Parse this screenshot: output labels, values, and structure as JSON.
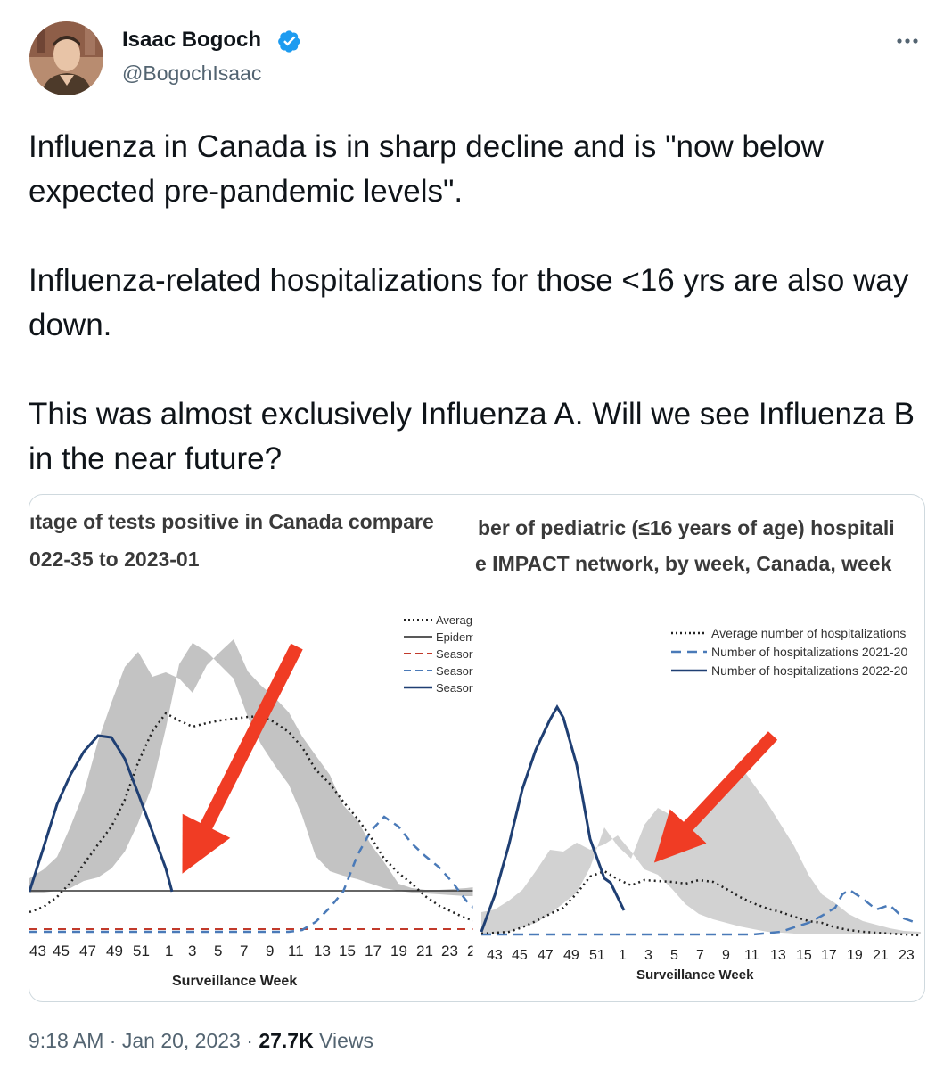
{
  "author": {
    "name": "Isaac Bogoch",
    "handle": "@BogochIsaac",
    "verified_icon": "verified-badge-icon",
    "more_icon": "more-options-icon"
  },
  "tweet_text": "Influenza in Canada is in sharp decline and is \"now below expected pre-pandemic levels\".\n\nInfluenza-related hospitalizations for those <16 yrs are also way down.\n\nThis was almost exclusively Influenza A. Will we see Influenza B in the near future?",
  "meta": {
    "time": "9:18 AM",
    "sep1": " · ",
    "date": "Jan 20, 2023",
    "sep2": " · ",
    "views_count": "27.7K",
    "views_label": " Views"
  },
  "colors": {
    "accent": "#1d9bf0",
    "text": "#0f1419",
    "muted": "#536471",
    "border": "#cfd9de",
    "season_current": "#1f3f73",
    "season_previous": "#4a7ab8",
    "arrow": "#f03c24",
    "band": "#c3c3c3"
  },
  "chart_data": [
    {
      "type": "line",
      "title": "ıtage of tests positive in Canada compare",
      "subtitle": "022-35 to 2023-01",
      "legend": [
        "Averag",
        "Epidem",
        "Season",
        "Season",
        "Season"
      ],
      "legend_position": "top-right",
      "xlabel": "Surveillance Week",
      "x_ticks": [
        "43",
        "45",
        "47",
        "49",
        "51",
        "1",
        "3",
        "5",
        "7",
        "9",
        "11",
        "13",
        "15",
        "17",
        "19",
        "21",
        "23",
        "2"
      ],
      "series": [
        {
          "style": "solid-dark",
          "x": [
            "42",
            "43",
            "44",
            "45",
            "46",
            "47",
            "48",
            "49",
            "50",
            "51",
            "52",
            "1"
          ],
          "values": [
            0,
            0.3,
            0.48,
            0.59,
            0.73,
            0.72,
            0.64,
            0.52,
            0.37,
            0.27,
            0.16,
            0.05
          ]
        },
        {
          "style": "dotted",
          "x": [
            "42",
            "44",
            "46",
            "48",
            "50",
            "52",
            "1",
            "3",
            "5",
            "7",
            "9",
            "11",
            "13",
            "15",
            "17",
            "19",
            "21",
            "23",
            "25"
          ],
          "values": [
            0,
            0.09,
            0.17,
            0.27,
            0.44,
            0.73,
            0.71,
            0.72,
            0.75,
            0.76,
            0.75,
            0.67,
            0.59,
            0.51,
            0.41,
            0.31,
            0.19,
            0.09,
            0.05
          ]
        },
        {
          "style": "dashed-light",
          "x": [
            "42",
            "44",
            "46",
            "48",
            "50",
            "52",
            "1",
            "3",
            "5",
            "7",
            "9",
            "11",
            "13",
            "15",
            "17",
            "19",
            "21",
            "23",
            "25"
          ],
          "values": [
            0,
            0,
            0,
            0,
            0,
            0,
            0,
            0,
            0,
            0,
            0,
            0.02,
            0.07,
            0.17,
            0.35,
            0.45,
            0.4,
            0.29,
            0.17
          ]
        },
        {
          "style": "dashed-red",
          "x": [
            "42",
            "25"
          ],
          "values": [
            0,
            0
          ]
        }
      ],
      "band": {
        "upper": [
          0.12,
          0.36,
          0.54,
          0.74,
          0.89,
          0.81,
          0.85,
          0.82,
          0.87,
          0.93,
          0.82,
          0.77,
          0.63,
          0.55,
          0.46,
          0.38,
          0.3,
          0.13,
          0.12
        ],
        "lower": [
          0,
          0.01,
          0.02,
          0.02,
          0.03,
          0.04,
          0.09,
          0.18,
          0.35,
          0.58,
          0.5,
          0.43,
          0.35,
          0.26,
          0.16,
          0.07,
          0.02,
          0.01,
          0
        ]
      },
      "threshold": 0.05
    },
    {
      "type": "line",
      "title": "ber of pediatric (≤16 years of age) hospitali",
      "subtitle": "e IMPACT network, by week, Canada, week",
      "legend": [
        "Average number of hospitalizations",
        "Number of hospitalizations 2021-20",
        "Number of hospitalizations 2022-20"
      ],
      "legend_position": "top-right",
      "xlabel": "Surveillance Week",
      "x_ticks": [
        "43",
        "45",
        "47",
        "49",
        "51",
        "1",
        "3",
        "5",
        "7",
        "9",
        "11",
        "13",
        "15",
        "17",
        "19",
        "21",
        "23"
      ],
      "series": [
        {
          "style": "solid-dark",
          "x": [
            "42",
            "43",
            "44",
            "45",
            "46",
            "47",
            "48",
            "49",
            "50",
            "51",
            "52",
            "1"
          ],
          "values": [
            0,
            0.19,
            0.43,
            0.66,
            0.82,
            0.99,
            0.82,
            0.54,
            0.29,
            0.16,
            0.13,
            0.05
          ]
        },
        {
          "style": "dotted",
          "x": [
            "42",
            "44",
            "46",
            "48",
            "50",
            "52",
            "1",
            "3",
            "5",
            "7",
            "9",
            "11",
            "13",
            "15",
            "17",
            "19",
            "21",
            "23",
            "25"
          ],
          "values": [
            0,
            0.02,
            0.05,
            0.1,
            0.18,
            0.28,
            0.27,
            0.29,
            0.29,
            0.3,
            0.27,
            0.22,
            0.16,
            0.11,
            0.08,
            0.06,
            0.04,
            0.02,
            0.01
          ]
        },
        {
          "style": "dashed-light",
          "x": [
            "42",
            "46",
            "52",
            "3",
            "9",
            "13",
            "15",
            "17",
            "18",
            "19",
            "21",
            "23",
            "24"
          ],
          "values": [
            0,
            0,
            0,
            0,
            0,
            0.01,
            0.04,
            0.1,
            0.15,
            0.14,
            0.08,
            0.08,
            0.03
          ]
        }
      ],
      "band": {
        "upper": [
          0.05,
          0.06,
          0.11,
          0.17,
          0.28,
          0.4,
          0.39,
          0.44,
          0.4,
          0.43,
          0.48,
          0.39,
          0.28,
          0.25,
          0.17,
          0.09,
          0.04,
          0.02,
          0.01
        ],
        "lower": [
          0,
          0,
          0,
          0,
          0.01,
          0.05,
          0.11,
          0.16,
          0.14,
          0.12,
          0.1,
          0.07,
          0.04,
          0.02,
          0.01,
          0,
          0,
          0,
          0
        ]
      }
    }
  ]
}
